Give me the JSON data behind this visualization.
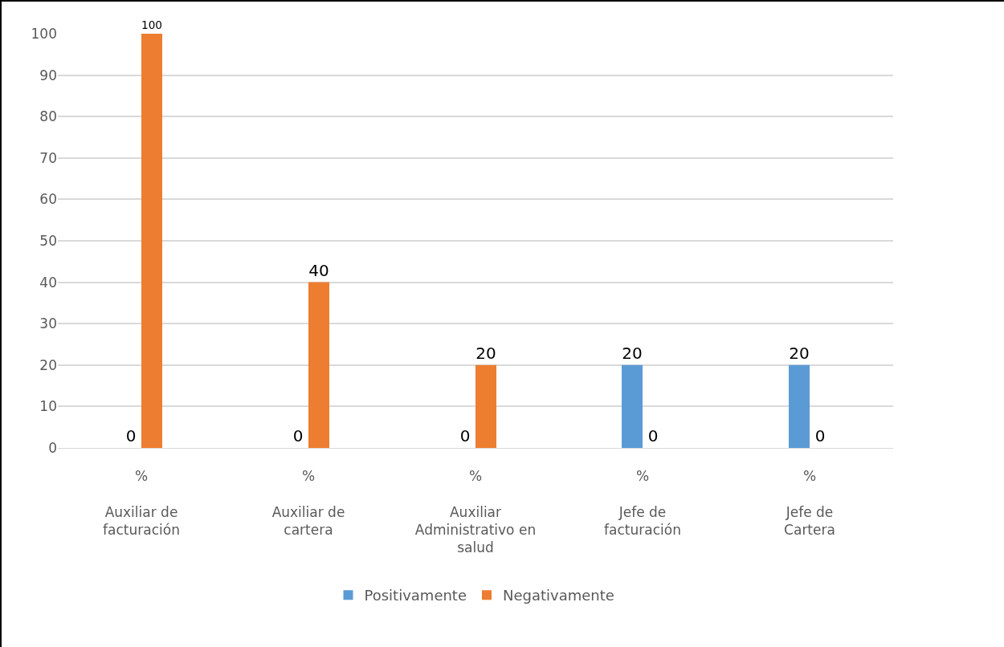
{
  "chart_data": {
    "type": "bar",
    "categories": [
      "%\n\nAuxiliar de\nfacturación",
      "%\n\nAuxiliar de\ncartera",
      "%\n\nAuxiliar\nAdministrativo en\nsalud",
      "%\n\nJefe de\nfacturación",
      "%\n\nJefe de\nCartera"
    ],
    "series": [
      {
        "name": "Positivamente",
        "color": "#5b9bd5",
        "values": [
          0,
          0,
          0,
          20,
          20
        ]
      },
      {
        "name": "Negativamente",
        "color": "#ed7d31",
        "values": [
          100,
          40,
          20,
          0,
          0
        ]
      }
    ],
    "ylim": [
      0,
      100
    ],
    "yticks": [
      0,
      10,
      20,
      30,
      40,
      50,
      60,
      70,
      80,
      90,
      100
    ],
    "grid": "y",
    "legend": "bottom",
    "data_labels": true
  }
}
